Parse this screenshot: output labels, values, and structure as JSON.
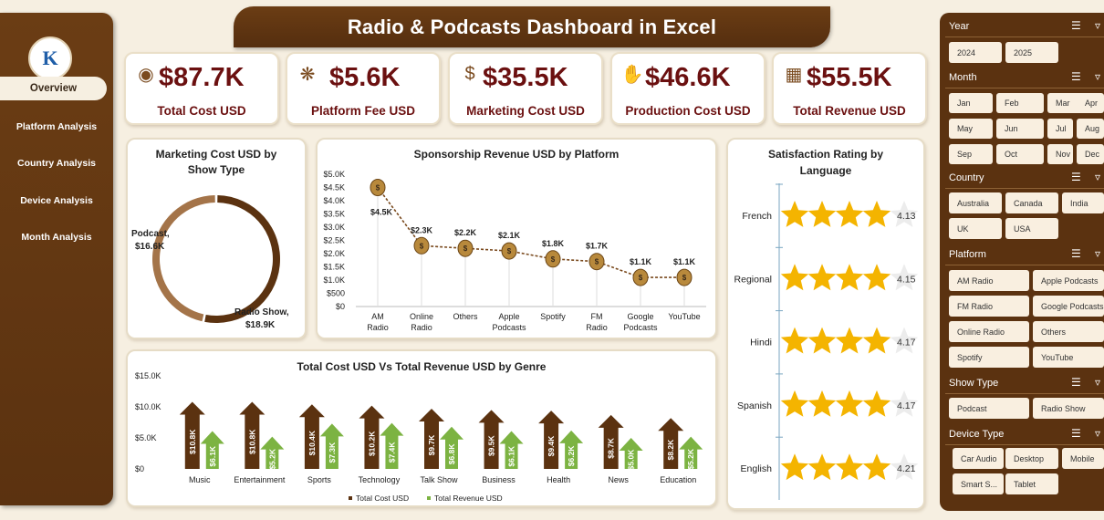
{
  "title": "Radio & Podcasts Dashboard in Excel",
  "logo_text": "K",
  "nav": [
    "Overview",
    "Platform Analysis",
    "Country Analysis",
    "Device Analysis",
    "Month Analysis"
  ],
  "kpis": [
    {
      "value": "$87.7K",
      "label": "Total Cost USD",
      "icon": "money-bag-icon"
    },
    {
      "value": "$5.6K",
      "label": "Platform Fee USD",
      "icon": "coins-hand-icon"
    },
    {
      "value": "$35.5K",
      "label": "Marketing Cost USD",
      "icon": "dollar-bag-icon"
    },
    {
      "value": "$46.6K",
      "label": "Production Cost USD",
      "icon": "hand-dollar-icon"
    },
    {
      "value": "$55.5K",
      "label": "Total Revenue USD",
      "icon": "revenue-chart-icon"
    }
  ],
  "donut": {
    "title_line1": "Marketing Cost USD by",
    "title_line2": "Show Type",
    "labels": [
      {
        "name": "Podcast,",
        "value": "$16.6K"
      },
      {
        "name": "Radio Show,",
        "value": "$18.9K"
      }
    ]
  },
  "sponsor": {
    "title": "Sponsorship Revenue USD by Platform",
    "yticks": [
      "$5.0K",
      "$4.5K",
      "$4.0K",
      "$3.5K",
      "$3.0K",
      "$2.5K",
      "$2.0K",
      "$1.5K",
      "$1.0K",
      "$500",
      "$0"
    ]
  },
  "genre": {
    "title": "Total Cost USD Vs Total Revenue USD by Genre",
    "yticks": [
      "$15.0K",
      "$10.0K",
      "$5.0K",
      "$0"
    ],
    "legend": [
      "Total Cost USD",
      "Total Revenue USD"
    ]
  },
  "rating": {
    "title_line1": "Satisfaction Rating by",
    "title_line2": "Language"
  },
  "slicers": {
    "year": {
      "title": "Year",
      "items": [
        "2024",
        "2025"
      ]
    },
    "month": {
      "title": "Month",
      "items": [
        "Jan",
        "Feb",
        "Mar",
        "Apr",
        "May",
        "Jun",
        "Jul",
        "Aug",
        "Sep",
        "Oct",
        "Nov",
        "Dec"
      ]
    },
    "country": {
      "title": "Country",
      "items": [
        "Australia",
        "Canada",
        "India",
        "UK",
        "USA"
      ]
    },
    "platform": {
      "title": "Platform",
      "items": [
        "AM Radio",
        "Apple Podcasts",
        "FM Radio",
        "Google Podcasts",
        "Online Radio",
        "Others",
        "Spotify",
        "YouTube"
      ]
    },
    "showtype": {
      "title": "Show Type",
      "items": [
        "Podcast",
        "Radio Show"
      ]
    },
    "device": {
      "title": "Device Type",
      "items": [
        "Car Audio",
        "Desktop",
        "Mobile",
        "Smart S...",
        "Tablet"
      ]
    }
  },
  "colors": {
    "brown": "#5b3210",
    "accent": "#6b1010",
    "green": "#7cb342",
    "gold": "#f4b400"
  },
  "chart_data": [
    {
      "type": "pie",
      "title": "Marketing Cost USD by Show Type",
      "categories": [
        "Podcast",
        "Radio Show"
      ],
      "values": [
        16.6,
        18.9
      ],
      "unit": "$K",
      "data_labels": [
        "$16.6K",
        "$18.9K"
      ]
    },
    {
      "type": "line",
      "title": "Sponsorship Revenue USD by Platform",
      "categories": [
        "AM Radio",
        "Online Radio",
        "Others",
        "Apple Podcasts",
        "Spotify",
        "FM Radio",
        "Google Podcasts",
        "YouTube"
      ],
      "values": [
        4500,
        2300,
        2200,
        2100,
        1800,
        1700,
        1100,
        1100
      ],
      "data_labels": [
        "$4.5K",
        "$2.3K",
        "$2.2K",
        "$2.1K",
        "$1.8K",
        "$1.7K",
        "$1.1K",
        "$1.1K"
      ],
      "ylim": [
        0,
        5000
      ]
    },
    {
      "type": "bar",
      "title": "Total Cost USD Vs Total Revenue USD by Genre",
      "categories": [
        "Music",
        "Entertainment",
        "Sports",
        "Technology",
        "Talk Show",
        "Business",
        "Health",
        "News",
        "Education"
      ],
      "series": [
        {
          "name": "Total Cost USD",
          "values": [
            10.8,
            10.8,
            10.4,
            10.2,
            9.7,
            9.5,
            9.4,
            8.7,
            8.2
          ],
          "data_labels": [
            "$10.8K",
            "$10.8K",
            "$10.4K",
            "$10.2K",
            "$9.7K",
            "$9.5K",
            "$9.4K",
            "$8.7K",
            "$8.2K"
          ]
        },
        {
          "name": "Total Revenue USD",
          "values": [
            6.1,
            5.2,
            7.3,
            7.4,
            6.8,
            6.1,
            6.2,
            5.0,
            5.2
          ],
          "data_labels": [
            "$6.1K",
            "$5.2K",
            "$7.3K",
            "$7.4K",
            "$6.8K",
            "$6.1K",
            "$6.2K",
            "$5.0K",
            "$5.2K"
          ]
        }
      ],
      "unit": "$K",
      "ylim": [
        0,
        15
      ]
    },
    {
      "type": "bar",
      "title": "Satisfaction Rating by Language",
      "categories": [
        "French",
        "Regional",
        "Hindi",
        "Spanish",
        "English"
      ],
      "values": [
        4.13,
        4.15,
        4.17,
        4.17,
        4.21
      ],
      "data_labels": [
        "4.13",
        "4.15",
        "4.17",
        "4.17",
        "4.21"
      ],
      "ylim": [
        0,
        5
      ]
    }
  ]
}
